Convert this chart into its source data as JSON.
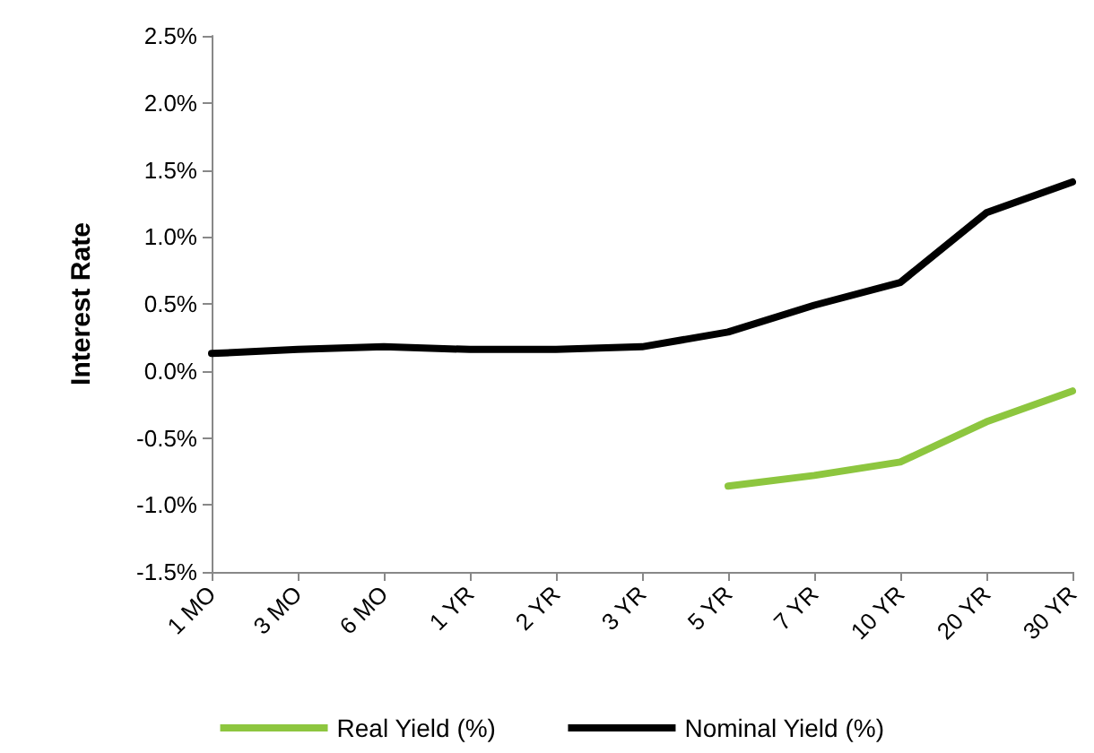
{
  "chart_data": {
    "type": "line",
    "ylabel": "Interest Rate",
    "categories": [
      "1 MO",
      "3 MO",
      "6 MO",
      "1 YR",
      "2 YR",
      "3 YR",
      "5 YR",
      "7 YR",
      "10 YR",
      "20 YR",
      "30 YR"
    ],
    "series": [
      {
        "name": "Real Yield (%)",
        "color": "#8dc63f",
        "values": [
          null,
          null,
          null,
          null,
          null,
          null,
          -0.86,
          -0.78,
          -0.68,
          -0.38,
          -0.15
        ]
      },
      {
        "name": "Nominal Yield (%)",
        "color": "#000000",
        "values": [
          0.13,
          0.16,
          0.18,
          0.16,
          0.16,
          0.18,
          0.29,
          0.49,
          0.66,
          1.18,
          1.41
        ]
      }
    ],
    "ylim": [
      -1.5,
      2.5
    ],
    "yticks": [
      {
        "value": -1.5,
        "label": "-1.5%"
      },
      {
        "value": -1.0,
        "label": "-1.0%"
      },
      {
        "value": -0.5,
        "label": "-0.5%"
      },
      {
        "value": 0,
        "label": "0.0%"
      },
      {
        "value": 0.5,
        "label": "0.5%"
      },
      {
        "value": 1.0,
        "label": "1.0%"
      },
      {
        "value": 1.5,
        "label": "1.5%"
      },
      {
        "value": 2.0,
        "label": "2.0%"
      },
      {
        "value": 2.5,
        "label": "2.5%"
      }
    ],
    "grid": false,
    "legend": "bottom",
    "marker": "none",
    "line_style": "solid"
  }
}
